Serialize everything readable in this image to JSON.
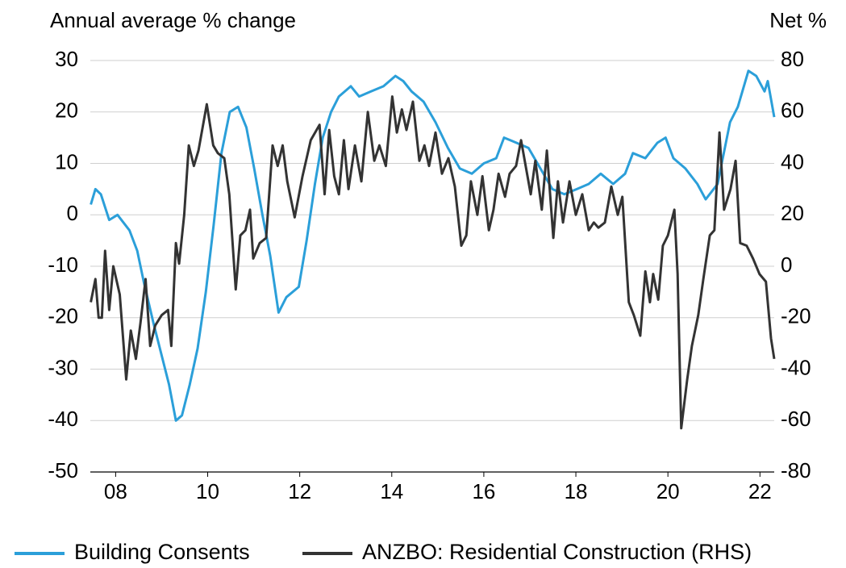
{
  "chart_data": {
    "type": "line",
    "y_label": "Annual average % change",
    "y2_label": "Net %",
    "xlim": [
      2007.45,
      2022.31
    ],
    "xticks": [
      {
        "value": 2008,
        "label": "08"
      },
      {
        "value": 2010,
        "label": "10"
      },
      {
        "value": 2012,
        "label": "12"
      },
      {
        "value": 2014,
        "label": "14"
      },
      {
        "value": 2016,
        "label": "16"
      },
      {
        "value": 2018,
        "label": "18"
      },
      {
        "value": 2020,
        "label": "20"
      },
      {
        "value": 2022,
        "label": "22"
      }
    ],
    "ylim": [
      -50,
      30
    ],
    "yticks": [
      30,
      20,
      10,
      0,
      -10,
      -20,
      -30,
      -40,
      -50
    ],
    "y2lim": [
      -80,
      80
    ],
    "y2ticks": [
      80,
      60,
      40,
      20,
      0,
      -20,
      -40,
      -60,
      -80
    ],
    "grid": true,
    "legend": "bottom",
    "series": [
      {
        "name": "Building Consents",
        "color": "#2b9fd9",
        "x": [
          2007.46,
          2007.56,
          2007.68,
          2007.86,
          2008.04,
          2008.3,
          2008.47,
          2008.61,
          2008.82,
          2008.99,
          2009.16,
          2009.31,
          2009.44,
          2009.61,
          2009.78,
          2009.96,
          2010.13,
          2010.3,
          2010.48,
          2010.66,
          2010.84,
          2011.01,
          2011.19,
          2011.36,
          2011.54,
          2011.71,
          2011.98,
          2012.15,
          2012.33,
          2012.5,
          2012.68,
          2012.85,
          2013.11,
          2013.29,
          2013.55,
          2013.82,
          2014.08,
          2014.25,
          2014.43,
          2014.69,
          2014.95,
          2015.22,
          2015.48,
          2015.74,
          2016.0,
          2016.27,
          2016.44,
          2016.71,
          2016.97,
          2017.23,
          2017.49,
          2017.75,
          2018.02,
          2018.28,
          2018.54,
          2018.81,
          2019.07,
          2019.24,
          2019.51,
          2019.77,
          2019.95,
          2020.12,
          2020.38,
          2020.64,
          2020.82,
          2021.08,
          2021.35,
          2021.52,
          2021.75,
          2021.92,
          2022.1,
          2022.17,
          2022.31
        ],
        "values": [
          2,
          5,
          4,
          -1,
          0,
          -3,
          -7,
          -13,
          -21,
          -27,
          -33,
          -40,
          -39,
          -33,
          -26,
          -15,
          -2,
          12,
          20,
          21,
          17,
          9,
          0,
          -8,
          -19,
          -16,
          -14,
          -5,
          6,
          15,
          20,
          23,
          25,
          23,
          24,
          25,
          27,
          26,
          24,
          22,
          18,
          13,
          9,
          8,
          10,
          11,
          15,
          14,
          13,
          9,
          5,
          4,
          5,
          6,
          8,
          6,
          8,
          12,
          11,
          14,
          15,
          11,
          9,
          6,
          3,
          6,
          18,
          21,
          28,
          27,
          24,
          26,
          19
        ]
      },
      {
        "name": "ANZBO: Residential Construction (RHS)",
        "color": "#333333",
        "axis": "y2",
        "x": [
          2007.46,
          2007.56,
          2007.63,
          2007.7,
          2007.77,
          2007.86,
          2007.95,
          2008.09,
          2008.23,
          2008.33,
          2008.44,
          2008.54,
          2008.65,
          2008.75,
          2008.86,
          2009.0,
          2009.14,
          2009.21,
          2009.31,
          2009.38,
          2009.49,
          2009.59,
          2009.7,
          2009.8,
          2009.98,
          2010.12,
          2010.22,
          2010.36,
          2010.47,
          2010.61,
          2010.71,
          2010.82,
          2010.92,
          2010.99,
          2011.13,
          2011.27,
          2011.41,
          2011.52,
          2011.63,
          2011.73,
          2011.89,
          2012.06,
          2012.24,
          2012.43,
          2012.54,
          2012.64,
          2012.75,
          2012.85,
          2012.96,
          2013.06,
          2013.2,
          2013.34,
          2013.48,
          2013.62,
          2013.73,
          2013.87,
          2014.01,
          2014.11,
          2014.22,
          2014.32,
          2014.46,
          2014.6,
          2014.71,
          2014.81,
          2014.95,
          2015.09,
          2015.23,
          2015.37,
          2015.51,
          2015.62,
          2015.72,
          2015.86,
          2015.97,
          2016.11,
          2016.21,
          2016.32,
          2016.46,
          2016.56,
          2016.7,
          2016.81,
          2016.91,
          2017.02,
          2017.12,
          2017.26,
          2017.37,
          2017.51,
          2017.61,
          2017.72,
          2017.86,
          2018.0,
          2018.14,
          2018.28,
          2018.39,
          2018.49,
          2018.63,
          2018.77,
          2018.91,
          2019.01,
          2019.15,
          2019.26,
          2019.4,
          2019.51,
          2019.61,
          2019.68,
          2019.79,
          2019.89,
          2020.0,
          2020.14,
          2020.21,
          2020.29,
          2020.42,
          2020.52,
          2020.66,
          2020.77,
          2020.91,
          2021.01,
          2021.12,
          2021.22,
          2021.36,
          2021.47,
          2021.57,
          2021.71,
          2021.85,
          2021.99,
          2022.13,
          2022.24,
          2022.31
        ],
        "values": [
          -14,
          -5,
          -20,
          -20,
          6,
          -17,
          0,
          -11,
          -44,
          -25,
          -36,
          -22,
          -5,
          -31,
          -23,
          -19,
          -17,
          -31,
          9,
          1,
          20,
          47,
          39,
          45,
          63,
          47,
          44,
          42,
          28,
          -9,
          12,
          14,
          22,
          3,
          9,
          11,
          47,
          39,
          47,
          33,
          19,
          35,
          49,
          55,
          28,
          53,
          35,
          28,
          49,
          30,
          47,
          33,
          60,
          41,
          47,
          39,
          66,
          52,
          61,
          53,
          64,
          41,
          47,
          39,
          52,
          36,
          42,
          31,
          8,
          12,
          33,
          20,
          35,
          14,
          22,
          36,
          27,
          36,
          39,
          49,
          39,
          28,
          41,
          22,
          45,
          11,
          33,
          17,
          33,
          20,
          28,
          14,
          17,
          15,
          17,
          31,
          20,
          27,
          -14,
          -19,
          -27,
          -2,
          -14,
          -3,
          -13,
          8,
          12,
          22,
          -3,
          -63,
          -44,
          -31,
          -19,
          -5,
          12,
          14,
          52,
          22,
          30,
          41,
          9,
          8,
          3,
          -3,
          -6,
          -28,
          -36
        ]
      }
    ]
  }
}
